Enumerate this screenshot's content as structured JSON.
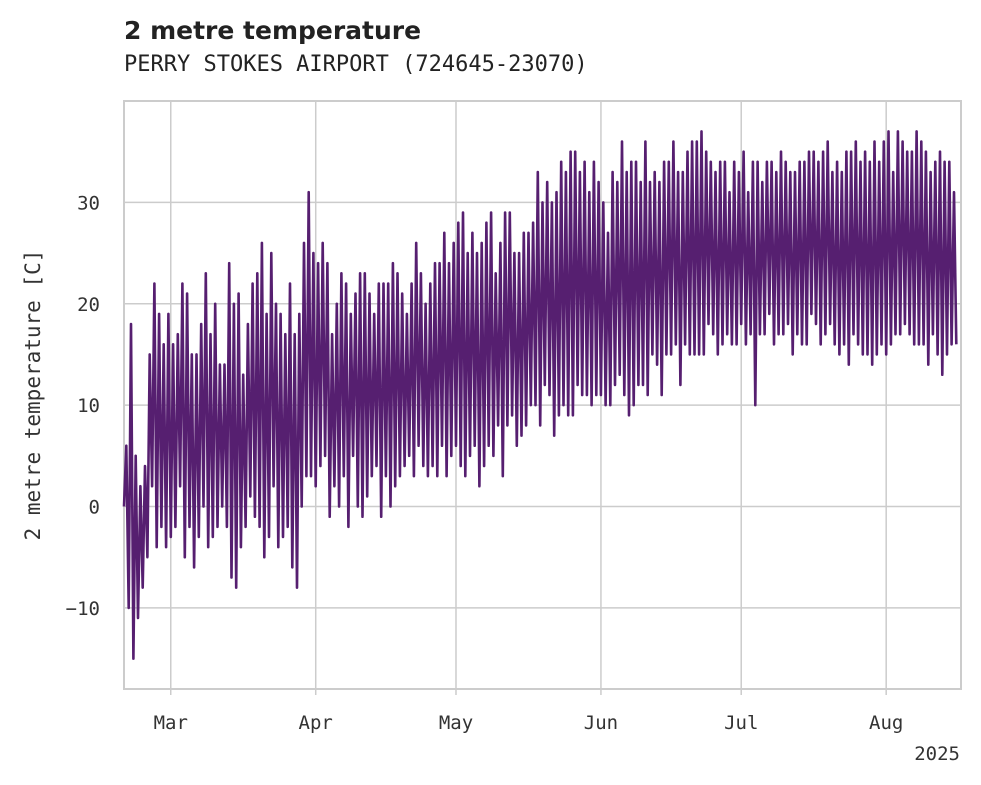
{
  "chart_data": {
    "type": "line",
    "title": "2 metre temperature",
    "subtitle": "PERRY STOKES AIRPORT (724645-23070)",
    "ylabel": "2 metre temperature [C]",
    "xlabel": "",
    "x_range": [
      "2025-02-19",
      "2025-08-17"
    ],
    "ylim": [
      -18,
      40
    ],
    "y_ticks": [
      -10,
      0,
      10,
      20,
      30
    ],
    "y_tick_labels": [
      "−10",
      "0",
      "10",
      "20",
      "30"
    ],
    "x_ticks": [
      "2025-03-01",
      "2025-04-01",
      "2025-05-01",
      "2025-06-01",
      "2025-07-01",
      "2025-08-01"
    ],
    "x_tick_labels": [
      "Mar",
      "Apr",
      "May",
      "Jun",
      "Jul",
      "Aug"
    ],
    "x_offset_label": "2025",
    "grid": true,
    "color": "#561f70",
    "series": [
      {
        "values_note_free": true,
        "x": [
          "2025-02-19",
          "2025-02-20",
          "2025-02-21",
          "2025-02-22",
          "2025-02-23",
          "2025-02-24",
          "2025-02-25",
          "2025-02-26",
          "2025-02-27",
          "2025-02-28",
          "2025-03-01",
          "2025-03-02",
          "2025-03-03",
          "2025-03-04",
          "2025-03-05",
          "2025-03-06",
          "2025-03-07",
          "2025-03-08",
          "2025-03-09",
          "2025-03-10",
          "2025-03-11",
          "2025-03-12",
          "2025-03-13",
          "2025-03-14",
          "2025-03-15",
          "2025-03-16",
          "2025-03-17",
          "2025-03-18",
          "2025-03-19",
          "2025-03-20",
          "2025-03-21",
          "2025-03-22",
          "2025-03-23",
          "2025-03-24",
          "2025-03-25",
          "2025-03-26",
          "2025-03-27",
          "2025-03-28",
          "2025-03-29",
          "2025-03-30",
          "2025-03-31",
          "2025-04-01",
          "2025-04-02",
          "2025-04-03",
          "2025-04-04",
          "2025-04-05",
          "2025-04-06",
          "2025-04-07",
          "2025-04-08",
          "2025-04-09",
          "2025-04-10",
          "2025-04-11",
          "2025-04-12",
          "2025-04-13",
          "2025-04-14",
          "2025-04-15",
          "2025-04-16",
          "2025-04-17",
          "2025-04-18",
          "2025-04-19",
          "2025-04-20",
          "2025-04-21",
          "2025-04-22",
          "2025-04-23",
          "2025-04-24",
          "2025-04-25",
          "2025-04-26",
          "2025-04-27",
          "2025-04-28",
          "2025-04-29",
          "2025-04-30",
          "2025-05-01",
          "2025-05-02",
          "2025-05-03",
          "2025-05-04",
          "2025-05-05",
          "2025-05-06",
          "2025-05-07",
          "2025-05-08",
          "2025-05-09",
          "2025-05-10",
          "2025-05-11",
          "2025-05-12",
          "2025-05-13",
          "2025-05-14",
          "2025-05-15",
          "2025-05-16",
          "2025-05-17",
          "2025-05-18",
          "2025-05-19",
          "2025-05-20",
          "2025-05-21",
          "2025-05-22",
          "2025-05-23",
          "2025-05-24",
          "2025-05-25",
          "2025-05-26",
          "2025-05-27",
          "2025-05-28",
          "2025-05-29",
          "2025-05-30",
          "2025-05-31",
          "2025-06-01",
          "2025-06-02",
          "2025-06-03",
          "2025-06-04",
          "2025-06-05",
          "2025-06-06",
          "2025-06-07",
          "2025-06-08",
          "2025-06-09",
          "2025-06-10",
          "2025-06-11",
          "2025-06-12",
          "2025-06-13",
          "2025-06-14",
          "2025-06-15",
          "2025-06-16",
          "2025-06-17",
          "2025-06-18",
          "2025-06-19",
          "2025-06-20",
          "2025-06-21",
          "2025-06-22",
          "2025-06-23",
          "2025-06-24",
          "2025-06-25",
          "2025-06-26",
          "2025-06-27",
          "2025-06-28",
          "2025-06-29",
          "2025-06-30",
          "2025-07-01",
          "2025-07-02",
          "2025-07-03",
          "2025-07-04",
          "2025-07-05",
          "2025-07-06",
          "2025-07-07",
          "2025-07-08",
          "2025-07-09",
          "2025-07-10",
          "2025-07-11",
          "2025-07-12",
          "2025-07-13",
          "2025-07-14",
          "2025-07-15",
          "2025-07-16",
          "2025-07-17",
          "2025-07-18",
          "2025-07-19",
          "2025-07-20",
          "2025-07-21",
          "2025-07-22",
          "2025-07-23",
          "2025-07-24",
          "2025-07-25",
          "2025-07-26",
          "2025-07-27",
          "2025-07-28",
          "2025-07-29",
          "2025-07-30",
          "2025-07-31",
          "2025-08-01",
          "2025-08-02",
          "2025-08-03",
          "2025-08-04",
          "2025-08-05",
          "2025-08-06",
          "2025-08-07",
          "2025-08-08",
          "2025-08-09",
          "2025-08-10",
          "2025-08-11",
          "2025-08-12",
          "2025-08-13",
          "2025-08-14",
          "2025-08-15",
          "2025-08-16"
        ],
        "min": [
          0,
          -10,
          -15,
          -11,
          -8,
          -5,
          2,
          -4,
          -2,
          -4,
          -3,
          -2,
          2,
          -5,
          -2,
          -6,
          -3,
          0,
          -4,
          -3,
          -2,
          0,
          -2,
          -7,
          -8,
          -4,
          -2,
          1,
          -1,
          -2,
          -5,
          -3,
          2,
          -4,
          -3,
          -2,
          -6,
          -8,
          0,
          3,
          3,
          2,
          4,
          5,
          -1,
          2,
          0,
          3,
          -2,
          5,
          0,
          -1,
          1,
          3,
          4,
          -1,
          3,
          0,
          2,
          3,
          4,
          5,
          3,
          6,
          4,
          3,
          4,
          3,
          6,
          3,
          5,
          6,
          4,
          3,
          5,
          6,
          2,
          4,
          6,
          5,
          8,
          3,
          8,
          9,
          6,
          7,
          8,
          10,
          10,
          8,
          12,
          11,
          7,
          9,
          10,
          9,
          9,
          12,
          11,
          11,
          10,
          11,
          11,
          10,
          10,
          12,
          13,
          11,
          9,
          10,
          12,
          12,
          11,
          15,
          14,
          11,
          15,
          15,
          16,
          12,
          16,
          15,
          15,
          15,
          15,
          18,
          17,
          15,
          16,
          17,
          16,
          16,
          18,
          16,
          17,
          10,
          17,
          17,
          19,
          16,
          17,
          17,
          18,
          15,
          17,
          16,
          16,
          19,
          18,
          16,
          17,
          18,
          16,
          15,
          16,
          14,
          17,
          16,
          15,
          15,
          14,
          15,
          16,
          15,
          16,
          17,
          17,
          18,
          17,
          16,
          16,
          16,
          14,
          17,
          15,
          13,
          15,
          16,
          16,
          17
        ],
        "max": [
          6,
          18,
          5,
          2,
          4,
          15,
          22,
          19,
          16,
          19,
          16,
          17,
          22,
          21,
          15,
          15,
          18,
          23,
          17,
          20,
          14,
          14,
          24,
          20,
          21,
          13,
          18,
          22,
          23,
          26,
          19,
          25,
          20,
          19,
          17,
          22,
          17,
          19,
          26,
          31,
          25,
          24,
          26,
          24,
          17,
          20,
          23,
          22,
          19,
          21,
          23,
          23,
          21,
          19,
          22,
          22,
          22,
          24,
          23,
          21,
          19,
          22,
          26,
          23,
          20,
          22,
          24,
          24,
          27,
          24,
          26,
          28,
          29,
          25,
          27,
          25,
          26,
          28,
          29,
          23,
          26,
          29,
          29,
          25,
          25,
          27,
          27,
          28,
          33,
          30,
          32,
          30,
          31,
          34,
          33,
          35,
          35,
          33,
          34,
          31,
          34,
          32,
          30,
          27,
          33,
          32,
          36,
          33,
          34,
          34,
          32,
          36,
          32,
          33,
          32,
          34,
          34,
          36,
          33,
          33,
          35,
          36,
          36,
          37,
          35,
          34,
          33,
          34,
          34,
          31,
          34,
          33,
          35,
          31,
          34,
          34,
          32,
          34,
          34,
          33,
          35,
          34,
          33,
          33,
          34,
          34,
          35,
          35,
          34,
          35,
          36,
          33,
          34,
          33,
          35,
          35,
          36,
          34,
          35,
          34,
          36,
          34,
          36,
          37,
          33,
          37,
          36,
          35,
          35,
          37,
          36,
          35,
          33,
          34,
          35,
          34,
          34,
          31
        ]
      }
    ]
  }
}
